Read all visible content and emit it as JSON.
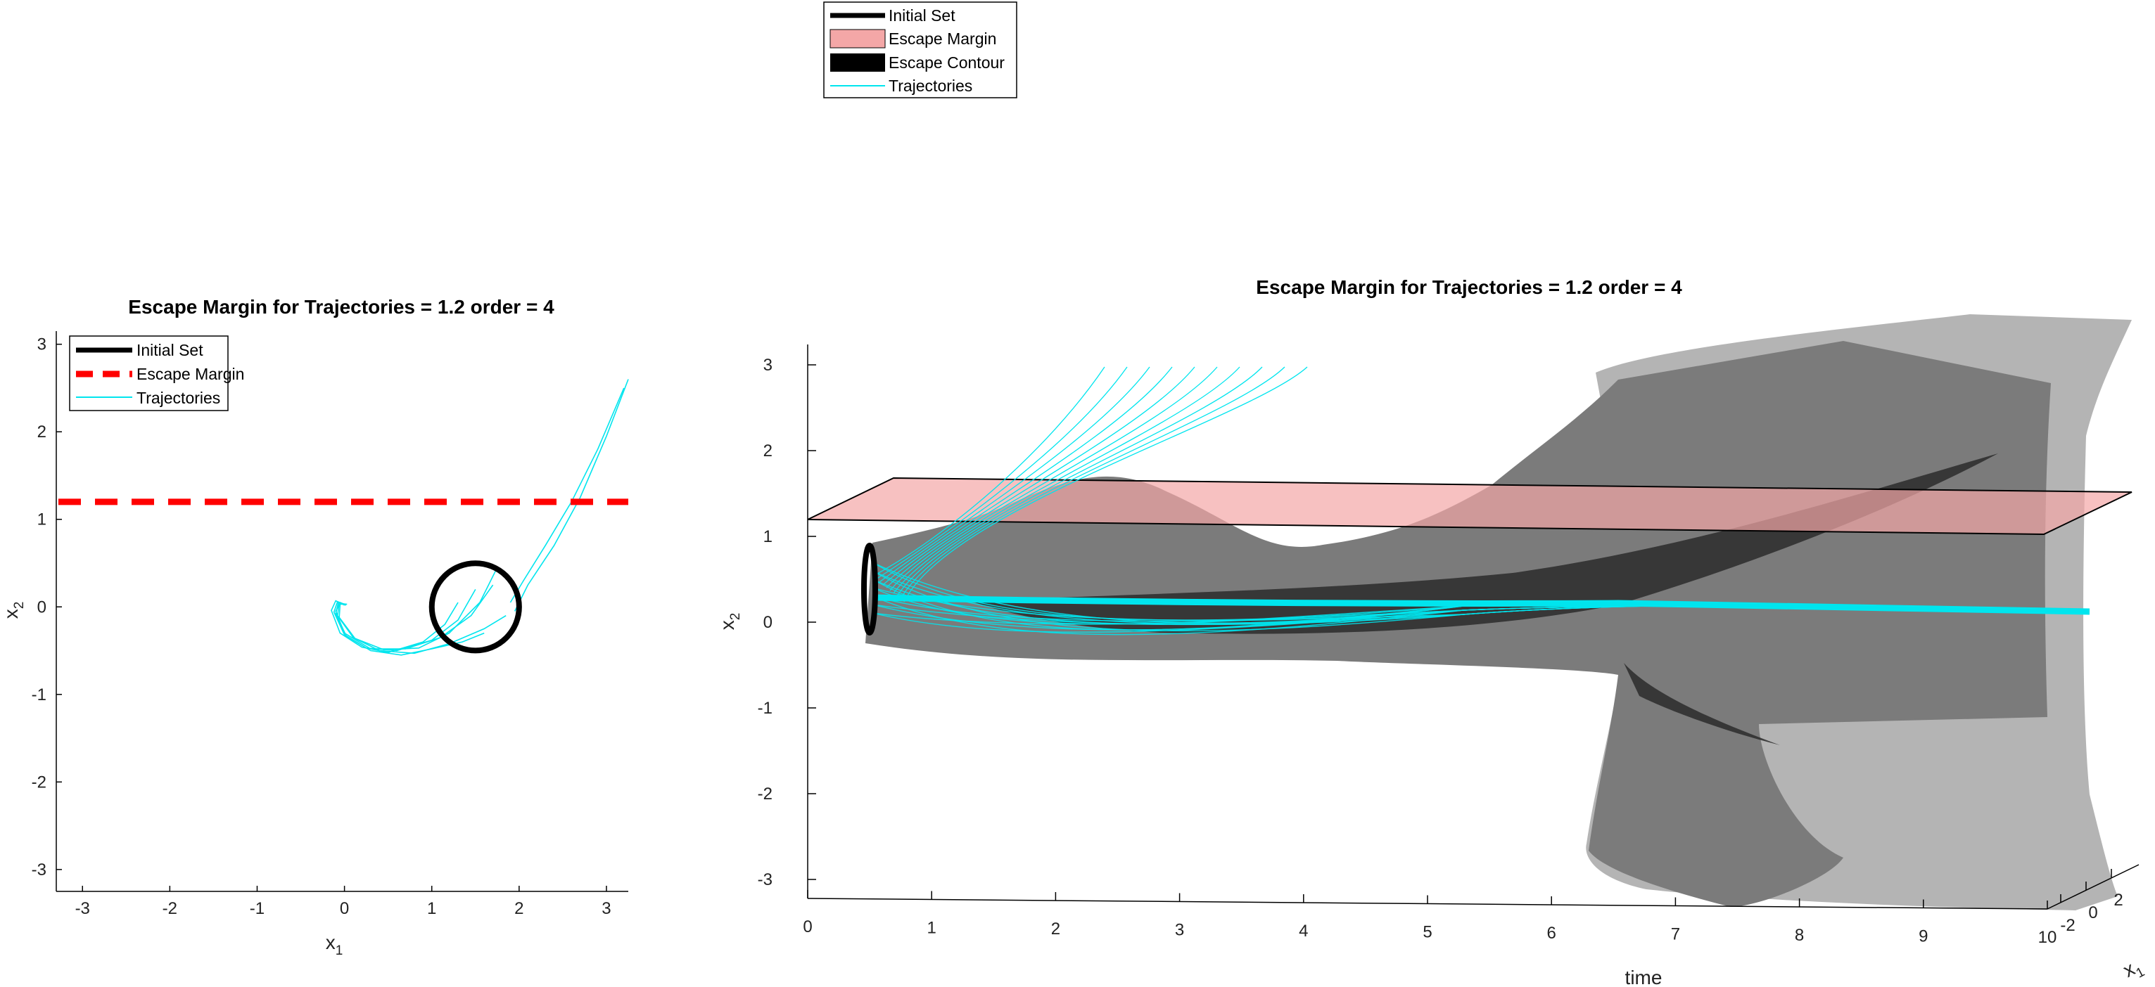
{
  "legend_top": {
    "entries": [
      {
        "label": "Initial Set",
        "swatch": "thick-line",
        "color": "#000000"
      },
      {
        "label": "Escape Margin",
        "swatch": "patch",
        "color": "#f4a7a7"
      },
      {
        "label": "Escape Contour",
        "swatch": "patch",
        "color": "#000000"
      },
      {
        "label": "Trajectories",
        "swatch": "thin-line",
        "color": "#00e5ee"
      }
    ]
  },
  "chart_data": [
    {
      "type": "line",
      "title": "Escape Margin for Trajectories = 1.2 order = 4",
      "xlabel": "x",
      "xlabel_sub": "1",
      "ylabel": "x",
      "ylabel_sub": "2",
      "xlim": [
        -3.3,
        3.25
      ],
      "ylim": [
        -3.25,
        3.15
      ],
      "xticks": [
        -3,
        -2,
        -1,
        0,
        1,
        2,
        3
      ],
      "yticks": [
        -3,
        -2,
        -1,
        0,
        1,
        2,
        3
      ],
      "legend": {
        "placement": "top-left",
        "entries": [
          {
            "label": "Initial Set",
            "style": "solid-thick",
            "color": "#000000"
          },
          {
            "label": "Escape Margin",
            "style": "dashed-thick",
            "color": "#ff0000"
          },
          {
            "label": "Trajectories",
            "style": "solid-thin",
            "color": "#00e5ee"
          }
        ]
      },
      "initial_set": {
        "center": [
          1.5,
          0.0
        ],
        "radius": 0.5,
        "color": "#000000"
      },
      "escape_margin": {
        "y": 1.2,
        "color": "#ff0000"
      },
      "trajectories": {
        "color": "#00e5ee",
        "series": [
          {
            "x": [
              1.9,
              2.05,
              2.3,
              2.6,
              2.9,
              3.2
            ],
            "y": [
              0.05,
              0.3,
              0.7,
              1.2,
              1.8,
              2.5
            ]
          },
          {
            "x": [
              1.95,
              2.1,
              2.4,
              2.7,
              3.0,
              3.25
            ],
            "y": [
              -0.05,
              0.25,
              0.7,
              1.25,
              1.95,
              2.6
            ]
          },
          {
            "x": [
              1.7,
              1.45,
              1.1,
              0.7,
              0.3,
              0.0,
              -0.1,
              -0.05,
              0.02
            ],
            "y": [
              0.25,
              -0.1,
              -0.35,
              -0.48,
              -0.48,
              -0.3,
              -0.05,
              0.05,
              0.02
            ]
          },
          {
            "x": [
              1.5,
              1.3,
              1.0,
              0.6,
              0.25,
              0.0,
              -0.12,
              -0.08,
              0.0
            ],
            "y": [
              0.2,
              -0.15,
              -0.38,
              -0.5,
              -0.47,
              -0.32,
              -0.06,
              0.06,
              0.03
            ]
          },
          {
            "x": [
              1.3,
              1.15,
              0.9,
              0.5,
              0.2,
              -0.05,
              -0.15,
              -0.1,
              0.0
            ],
            "y": [
              0.05,
              -0.2,
              -0.4,
              -0.52,
              -0.46,
              -0.3,
              -0.04,
              0.07,
              0.02
            ]
          },
          {
            "x": [
              1.85,
              1.6,
              1.2,
              0.8,
              0.4,
              0.1,
              -0.08,
              -0.06,
              0.03
            ],
            "y": [
              -0.1,
              -0.25,
              -0.42,
              -0.53,
              -0.5,
              -0.35,
              -0.1,
              0.04,
              0.03
            ]
          },
          {
            "x": [
              1.6,
              1.35,
              1.0,
              0.65,
              0.3,
              0.02,
              -0.1,
              -0.07,
              0.01
            ],
            "y": [
              -0.3,
              -0.4,
              -0.48,
              -0.55,
              -0.5,
              -0.33,
              -0.08,
              0.05,
              0.02
            ]
          },
          {
            "x": [
              1.75,
              1.55,
              1.2,
              0.85,
              0.45,
              0.12,
              -0.06,
              -0.05,
              0.02
            ],
            "y": [
              0.45,
              0.05,
              -0.3,
              -0.47,
              -0.49,
              -0.36,
              -0.12,
              0.03,
              0.03
            ]
          }
        ]
      }
    },
    {
      "type": "line",
      "view": "3d",
      "title": "Escape Margin for Trajectories = 1.2 order = 4",
      "xlabel": "time",
      "ylabel": "x",
      "ylabel_sub": "2",
      "zlabel": "x",
      "zlabel_sub": "1",
      "time_ticks": [
        0,
        1,
        2,
        3,
        4,
        5,
        6,
        7,
        8,
        9,
        10
      ],
      "x2_ticks": [
        -3,
        -2,
        -1,
        0,
        1,
        2,
        3
      ],
      "x1_ticks": [
        -2,
        0,
        2
      ],
      "time_lim": [
        0,
        10
      ],
      "x2_lim": [
        -3.3,
        3.3
      ],
      "escape_margin": {
        "x2": 1.2,
        "color": "#f4a7a7"
      },
      "escape_contour_color": "#000000",
      "trajectories_color": "#00e5ee",
      "initial_set_color": "#000000"
    }
  ]
}
